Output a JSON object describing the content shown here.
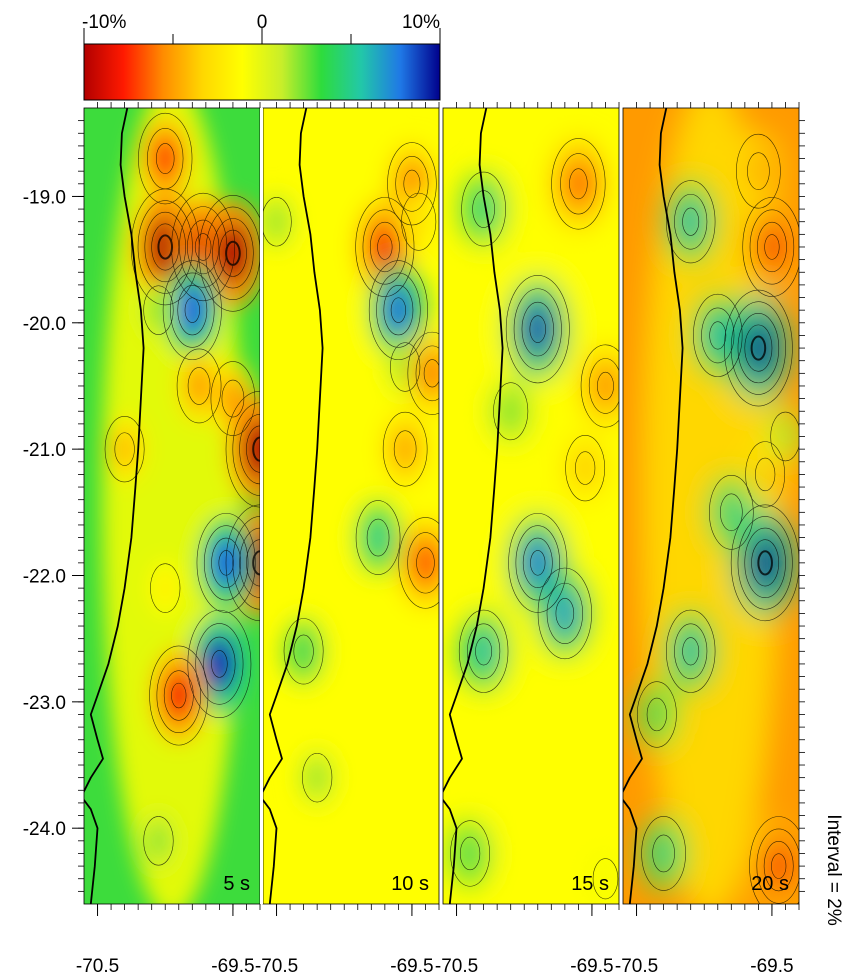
{
  "colorbar": {
    "tick_labels": [
      {
        "value": -10,
        "label": "-10%"
      },
      {
        "value": 0,
        "label": "0"
      },
      {
        "value": 10,
        "label": "10%"
      }
    ],
    "minor_tick_values": [
      -5,
      5
    ],
    "range": [
      -10,
      10
    ],
    "colors": [
      "#b20000",
      "#ff1a00",
      "#ff8c00",
      "#ffd700",
      "#ffff00",
      "#c8ee2a",
      "#2edc3c",
      "#22c8a8",
      "#1f78e6",
      "#00008c"
    ]
  },
  "y_axis": {
    "range": [
      -24.6,
      -18.3
    ],
    "tick_labels": [
      {
        "value": -19.0,
        "label": "-19.0"
      },
      {
        "value": -20.0,
        "label": "-20.0"
      },
      {
        "value": -21.0,
        "label": "-21.0"
      },
      {
        "value": -22.0,
        "label": "-22.0"
      },
      {
        "value": -23.0,
        "label": "-23.0"
      },
      {
        "value": -24.0,
        "label": "-24.0"
      }
    ]
  },
  "x_axis": {
    "range": [
      -70.6,
      -69.3
    ],
    "tick_labels": [
      {
        "value": -70.5,
        "label": "-70.5"
      },
      {
        "value": -69.5,
        "label": "-69.5"
      }
    ]
  },
  "panels": [
    {
      "label": "5 s",
      "background": "#3ddc3c",
      "anomalies": [
        {
          "lon": -70.0,
          "lat": -18.7,
          "value": -7
        },
        {
          "lon": -70.0,
          "lat": -19.4,
          "value": -10
        },
        {
          "lon": -69.72,
          "lat": -19.4,
          "value": -9
        },
        {
          "lon": -69.5,
          "lat": -19.45,
          "value": -10
        },
        {
          "lon": -69.8,
          "lat": -19.9,
          "value": 8
        },
        {
          "lon": -70.05,
          "lat": -19.9,
          "value": 2
        },
        {
          "lon": -69.75,
          "lat": -20.5,
          "value": -5
        },
        {
          "lon": -69.5,
          "lat": -20.6,
          "value": -5
        },
        {
          "lon": -69.3,
          "lat": -21.0,
          "value": -10
        },
        {
          "lon": -70.3,
          "lat": -21.0,
          "value": -4
        },
        {
          "lon": -69.3,
          "lat": -21.9,
          "value": -10
        },
        {
          "lon": -69.55,
          "lat": -21.9,
          "value": 8
        },
        {
          "lon": -69.6,
          "lat": -22.7,
          "value": 9
        },
        {
          "lon": -69.9,
          "lat": -22.95,
          "value": -8
        },
        {
          "lon": -70.0,
          "lat": -22.1,
          "value": -2
        },
        {
          "lon": -70.05,
          "lat": -24.1,
          "value": 2
        }
      ]
    },
    {
      "label": "10 s",
      "background": "#ffff00",
      "anomalies": [
        {
          "lon": -69.5,
          "lat": -18.9,
          "value": -6
        },
        {
          "lon": -69.7,
          "lat": -19.4,
          "value": -8
        },
        {
          "lon": -69.45,
          "lat": -19.2,
          "value": -3
        },
        {
          "lon": -69.6,
          "lat": -19.9,
          "value": 8
        },
        {
          "lon": -69.55,
          "lat": -20.35,
          "value": 2
        },
        {
          "lon": -69.35,
          "lat": -20.4,
          "value": -6
        },
        {
          "lon": -69.55,
          "lat": -21.0,
          "value": -5
        },
        {
          "lon": -69.75,
          "lat": -21.7,
          "value": 5
        },
        {
          "lon": -69.4,
          "lat": -21.9,
          "value": -7
        },
        {
          "lon": -70.3,
          "lat": -22.6,
          "value": 4
        },
        {
          "lon": -70.2,
          "lat": -23.6,
          "value": 2
        },
        {
          "lon": -70.5,
          "lat": -19.2,
          "value": 2
        }
      ]
    },
    {
      "label": "15 s",
      "background": "#ffff00",
      "anomalies": [
        {
          "lon": -69.6,
          "lat": -18.9,
          "value": -7
        },
        {
          "lon": -70.3,
          "lat": -19.1,
          "value": 5
        },
        {
          "lon": -69.9,
          "lat": -20.05,
          "value": 9
        },
        {
          "lon": -69.4,
          "lat": -20.5,
          "value": -6
        },
        {
          "lon": -70.1,
          "lat": -20.7,
          "value": 3
        },
        {
          "lon": -69.55,
          "lat": -21.15,
          "value": -4
        },
        {
          "lon": -69.9,
          "lat": -21.9,
          "value": 8
        },
        {
          "lon": -69.7,
          "lat": -22.3,
          "value": 7
        },
        {
          "lon": -70.3,
          "lat": -22.6,
          "value": 6
        },
        {
          "lon": -70.4,
          "lat": -24.2,
          "value": 4
        },
        {
          "lon": -69.4,
          "lat": -24.4,
          "value": -1
        }
      ]
    },
    {
      "label": "20 s",
      "background": "#ff9a00",
      "anomalies": [
        {
          "lon": -69.6,
          "lat": -18.8,
          "value": -5
        },
        {
          "lon": -69.5,
          "lat": -19.4,
          "value": -8
        },
        {
          "lon": -70.1,
          "lat": -19.2,
          "value": 6
        },
        {
          "lon": -69.6,
          "lat": -20.2,
          "value": 10
        },
        {
          "lon": -69.9,
          "lat": -20.1,
          "value": 6
        },
        {
          "lon": -69.4,
          "lat": -20.9,
          "value": 2
        },
        {
          "lon": -69.55,
          "lat": -21.2,
          "value": -4
        },
        {
          "lon": -69.55,
          "lat": -21.9,
          "value": 10
        },
        {
          "lon": -69.8,
          "lat": -21.5,
          "value": 5
        },
        {
          "lon": -70.1,
          "lat": -22.6,
          "value": 6
        },
        {
          "lon": -70.3,
          "lat": -24.2,
          "value": 5
        },
        {
          "lon": -70.35,
          "lat": -23.1,
          "value": 4
        },
        {
          "lon": -69.45,
          "lat": -24.3,
          "value": -8
        }
      ]
    }
  ],
  "coastline": [
    [
      -70.28,
      -18.3
    ],
    [
      -70.32,
      -18.5
    ],
    [
      -70.33,
      -18.75
    ],
    [
      -70.3,
      -19.0
    ],
    [
      -70.25,
      -19.3
    ],
    [
      -70.22,
      -19.6
    ],
    [
      -70.18,
      -19.9
    ],
    [
      -70.16,
      -20.2
    ],
    [
      -70.18,
      -20.6
    ],
    [
      -70.2,
      -21.0
    ],
    [
      -70.22,
      -21.3
    ],
    [
      -70.25,
      -21.7
    ],
    [
      -70.3,
      -22.1
    ],
    [
      -70.35,
      -22.4
    ],
    [
      -70.42,
      -22.7
    ],
    [
      -70.5,
      -22.95
    ],
    [
      -70.55,
      -23.1
    ],
    [
      -70.5,
      -23.3
    ],
    [
      -70.46,
      -23.45
    ],
    [
      -70.55,
      -23.6
    ],
    [
      -70.62,
      -23.75
    ],
    [
      -70.55,
      -23.85
    ],
    [
      -70.5,
      -24.0
    ],
    [
      -70.52,
      -24.3
    ],
    [
      -70.55,
      -24.6
    ]
  ],
  "interval_note": "Interval = 2%"
}
